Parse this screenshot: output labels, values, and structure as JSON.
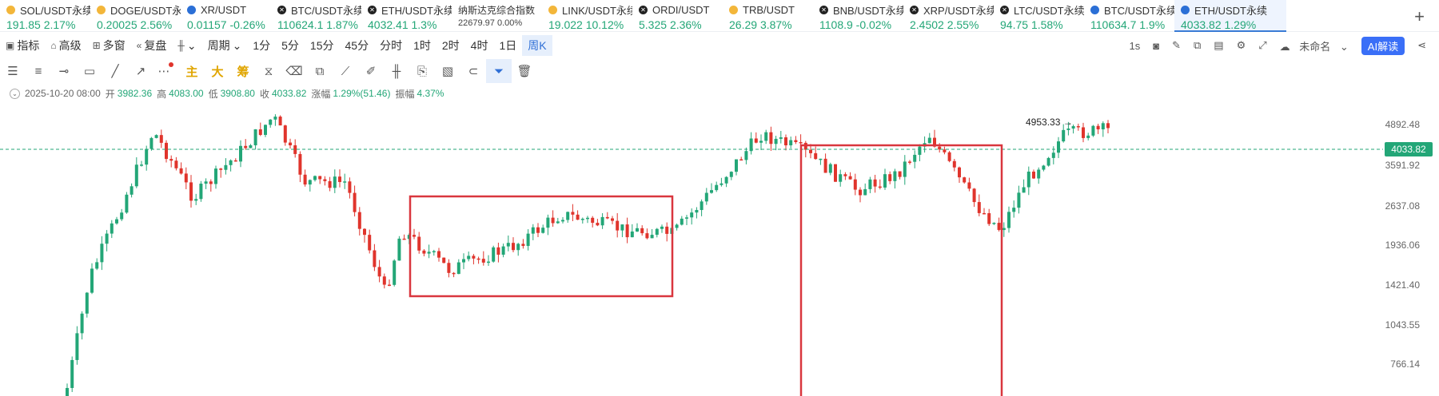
{
  "tickers": [
    {
      "name": "SOL/USDT永续",
      "price": "191.85",
      "change": "2.17%",
      "icon": "gold-dot",
      "icls": "g"
    },
    {
      "name": "DOGE/USDT永续",
      "price": "0.20025",
      "change": "2.56%",
      "icon": "gold-dot",
      "icls": "g"
    },
    {
      "name": "XR/USDT",
      "price": "0.01157",
      "change": "-0.26%",
      "icon": "blue-swirl",
      "icls": "b"
    },
    {
      "name": "BTC/USDT永续",
      "price": "110624.1",
      "change": "1.87%",
      "icon": "x-coin",
      "icls": "x"
    },
    {
      "name": "ETH/USDT永续",
      "price": "4032.41",
      "change": "1.3%",
      "icon": "x-coin",
      "icls": "x"
    },
    {
      "name": "纳斯达克综合指数",
      "price": "22679.97",
      "change": "0.00%",
      "icon": "",
      "icls": "",
      "small": true
    },
    {
      "name": "LINK/USDT永续",
      "price": "19.022",
      "change": "10.12%",
      "icon": "gold-dot",
      "icls": "g"
    },
    {
      "name": "ORDI/USDT",
      "price": "5.325",
      "change": "2.36%",
      "icon": "x-coin",
      "icls": "x"
    },
    {
      "name": "TRB/USDT",
      "price": "26.29",
      "change": "3.87%",
      "icon": "gold-dot",
      "icls": "g"
    },
    {
      "name": "BNB/USDT永续",
      "price": "1108.9",
      "change": "-0.02%",
      "icon": "x-coin",
      "icls": "x"
    },
    {
      "name": "XRP/USDT永续",
      "price": "2.4502",
      "change": "2.55%",
      "icon": "x-coin",
      "icls": "x"
    },
    {
      "name": "LTC/USDT永续",
      "price": "94.75",
      "change": "1.58%",
      "icon": "x-coin",
      "icls": "x"
    },
    {
      "name": "BTC/USDT永续",
      "price": "110634.7",
      "change": "1.9%",
      "icon": "drop",
      "icls": "b"
    },
    {
      "name": "ETH/USDT永续",
      "price": "4033.82",
      "change": "1.29%",
      "icon": "drop",
      "icls": "b",
      "active": true
    }
  ],
  "toolbar": {
    "indicator": "指标",
    "advanced": "高级",
    "multi": "多窗",
    "replay": "复盘",
    "period": "周期",
    "intervals": [
      "1分",
      "5分",
      "15分",
      "45分",
      "分时",
      "1时",
      "2时",
      "4时",
      "1日",
      "周K"
    ],
    "selected_interval": "周K",
    "right": {
      "rate": "1s",
      "unnamed": "未命名",
      "ai": "AI解读"
    }
  },
  "drawbar": {
    "main": "主",
    "big": "大",
    "chip": "筹"
  },
  "info": {
    "date": "2025-10-20 08:00",
    "open_label": "开",
    "open": "3982.36",
    "high_label": "高",
    "high": "4083.00",
    "low_label": "低",
    "low": "3908.80",
    "close_label": "收",
    "close": "4033.82",
    "chg_label": "涨幅",
    "chg": "1.29%(51.46)",
    "amp_label": "振幅",
    "amp": "4.37%"
  },
  "chart_data": {
    "type": "candlestick",
    "y_ticks": [
      "4892.48",
      "3591.92",
      "2637.08",
      "1936.06",
      "1421.40",
      "1043.55",
      "766.14"
    ],
    "last_price": "4033.82",
    "max_label": "4953.33",
    "colors": {
      "up": "#23a677",
      "down": "#e0342c",
      "box": "#d9363e"
    }
  }
}
